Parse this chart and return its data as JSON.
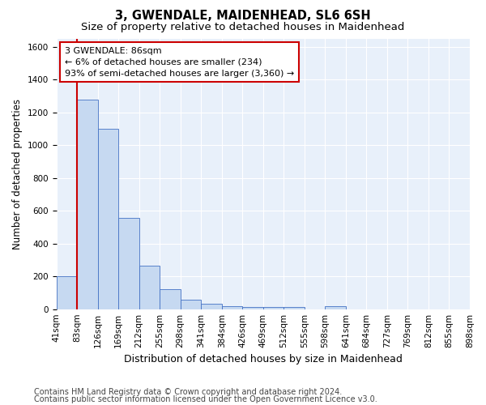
{
  "title_line1": "3, GWENDALE, MAIDENHEAD, SL6 6SH",
  "title_line2": "Size of property relative to detached houses in Maidenhead",
  "xlabel": "Distribution of detached houses by size in Maidenhead",
  "ylabel": "Number of detached properties",
  "bar_values": [
    200,
    1275,
    1100,
    555,
    265,
    120,
    58,
    32,
    20,
    15,
    15,
    15,
    0,
    20,
    0,
    0,
    0,
    0,
    0,
    0
  ],
  "bin_labels": [
    "41sqm",
    "83sqm",
    "126sqm",
    "169sqm",
    "212sqm",
    "255sqm",
    "298sqm",
    "341sqm",
    "384sqm",
    "426sqm",
    "469sqm",
    "512sqm",
    "555sqm",
    "598sqm",
    "641sqm",
    "684sqm",
    "727sqm",
    "769sqm",
    "812sqm",
    "855sqm",
    "898sqm"
  ],
  "bar_color": "#c6d9f1",
  "bar_edge_color": "#4472c4",
  "vline_color": "#cc0000",
  "annotation_text": "3 GWENDALE: 86sqm\n← 6% of detached houses are smaller (234)\n93% of semi-detached houses are larger (3,360) →",
  "annotation_box_color": "#cc0000",
  "ylim": [
    0,
    1650
  ],
  "yticks": [
    0,
    200,
    400,
    600,
    800,
    1000,
    1200,
    1400,
    1600
  ],
  "background_color": "#e8f0fa",
  "grid_color": "#ffffff",
  "footer_line1": "Contains HM Land Registry data © Crown copyright and database right 2024.",
  "footer_line2": "Contains public sector information licensed under the Open Government Licence v3.0.",
  "title_fontsize": 10.5,
  "subtitle_fontsize": 9.5,
  "xlabel_fontsize": 9,
  "ylabel_fontsize": 8.5,
  "tick_fontsize": 7.5,
  "annotation_fontsize": 8,
  "footer_fontsize": 7
}
